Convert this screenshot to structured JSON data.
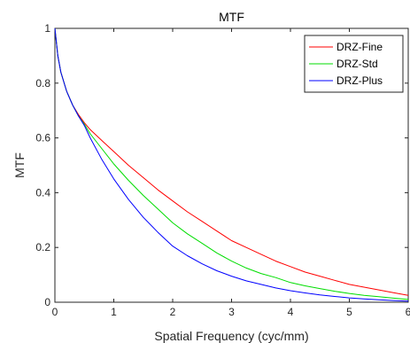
{
  "chart_data": {
    "type": "line",
    "title": "MTF",
    "xlabel": "Spatial Frequency (cyc/mm)",
    "ylabel": "MTF",
    "xlim": [
      0,
      6
    ],
    "ylim": [
      0,
      1
    ],
    "x_ticks": [
      "0",
      "1",
      "2",
      "3",
      "4",
      "5",
      "6"
    ],
    "y_ticks": [
      "0",
      "0.2",
      "0.4",
      "0.6",
      "0.8",
      "1"
    ],
    "grid": false,
    "legend_position": "top-right",
    "x": [
      0,
      0.05,
      0.1,
      0.2,
      0.3,
      0.4,
      0.5,
      0.6,
      0.8,
      1.0,
      1.25,
      1.5,
      1.75,
      2.0,
      2.25,
      2.5,
      2.75,
      3.0,
      3.25,
      3.5,
      3.75,
      4.0,
      4.25,
      4.5,
      4.75,
      5.0,
      5.25,
      5.5,
      5.75,
      6.0
    ],
    "series": [
      {
        "name": "DRZ-Fine",
        "color": "#ff0000",
        "values": [
          1.0,
          0.9,
          0.84,
          0.77,
          0.72,
          0.685,
          0.655,
          0.63,
          0.59,
          0.55,
          0.5,
          0.455,
          0.41,
          0.37,
          0.33,
          0.295,
          0.26,
          0.225,
          0.2,
          0.175,
          0.15,
          0.13,
          0.11,
          0.095,
          0.08,
          0.065,
          0.055,
          0.045,
          0.035,
          0.025
        ]
      },
      {
        "name": "DRZ-Std",
        "color": "#00dd00",
        "values": [
          1.0,
          0.9,
          0.84,
          0.77,
          0.72,
          0.68,
          0.65,
          0.615,
          0.56,
          0.505,
          0.445,
          0.39,
          0.34,
          0.29,
          0.25,
          0.215,
          0.18,
          0.15,
          0.125,
          0.105,
          0.09,
          0.072,
          0.06,
          0.05,
          0.04,
          0.032,
          0.025,
          0.02,
          0.015,
          0.01
        ]
      },
      {
        "name": "DRZ-Plus",
        "color": "#0000ff",
        "values": [
          1.0,
          0.9,
          0.84,
          0.77,
          0.72,
          0.68,
          0.645,
          0.6,
          0.52,
          0.45,
          0.375,
          0.31,
          0.255,
          0.205,
          0.17,
          0.14,
          0.115,
          0.095,
          0.078,
          0.065,
          0.052,
          0.042,
          0.034,
          0.027,
          0.021,
          0.016,
          0.012,
          0.009,
          0.006,
          0.004
        ]
      }
    ]
  }
}
